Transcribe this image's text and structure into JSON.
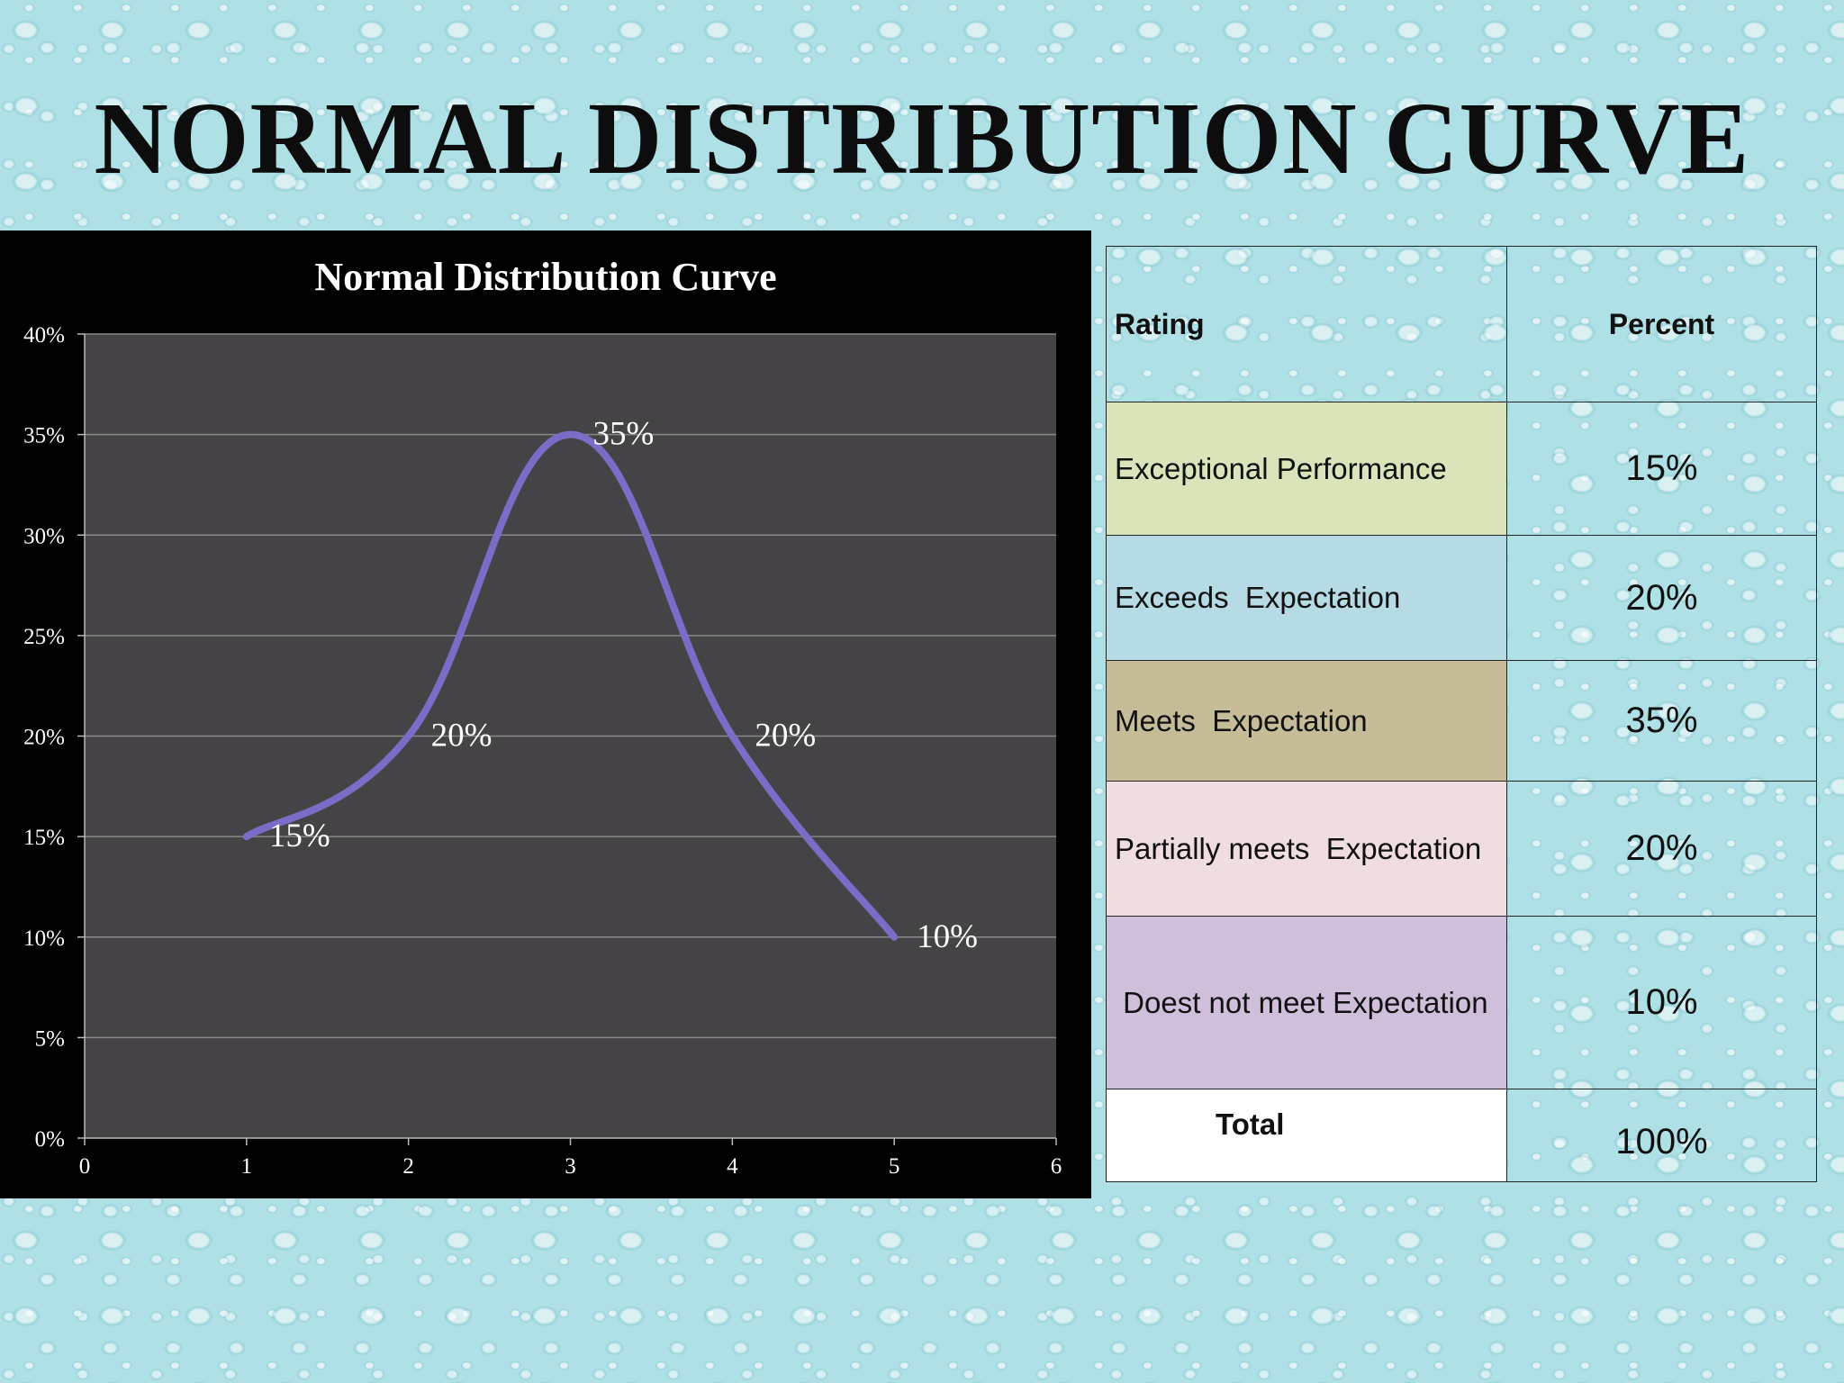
{
  "slide": {
    "title": "NORMAL DISTRIBUTION CURVE"
  },
  "chart_data": {
    "type": "line",
    "title": "Normal Distribution Curve",
    "xlabel": "",
    "ylabel": "",
    "xlim": [
      0,
      6
    ],
    "ylim": [
      0,
      40
    ],
    "x_ticks": [
      "0",
      "1",
      "2",
      "3",
      "4",
      "5",
      "6"
    ],
    "y_ticks": [
      "0%",
      "5%",
      "10%",
      "15%",
      "20%",
      "25%",
      "30%",
      "35%",
      "40%"
    ],
    "grid": true,
    "smooth": true,
    "series": [
      {
        "x": [
          1,
          2,
          3,
          4,
          5
        ],
        "values": [
          15,
          20,
          35,
          20,
          10
        ],
        "labels": [
          "15%",
          "20%",
          "35%",
          "20%",
          "10%"
        ],
        "color": "#7b6cc8"
      }
    ],
    "colors": {
      "background": "#000000",
      "plot_area": "#454345",
      "gridline": "#8a888a",
      "line": "#7b6cc8"
    }
  },
  "table": {
    "headers": {
      "rating": "Rating",
      "percent": "Percent"
    },
    "rows": [
      {
        "rating": "Exceptional Performance",
        "percent": "15%",
        "color": "#d9e4bb"
      },
      {
        "rating": "Exceeds  Expectation",
        "percent": "20%",
        "color": "#b6dbe5"
      },
      {
        "rating": "Meets  Expectation",
        "percent": "35%",
        "color": "#c7bc98"
      },
      {
        "rating": "Partially meets  Expectation",
        "percent": "20%",
        "color": "#f0dde0"
      },
      {
        "rating": " Doest not meet Expectation",
        "percent": "10%",
        "color": "#d0bfdb"
      }
    ],
    "total": {
      "label": "Total",
      "percent": "100%"
    }
  }
}
